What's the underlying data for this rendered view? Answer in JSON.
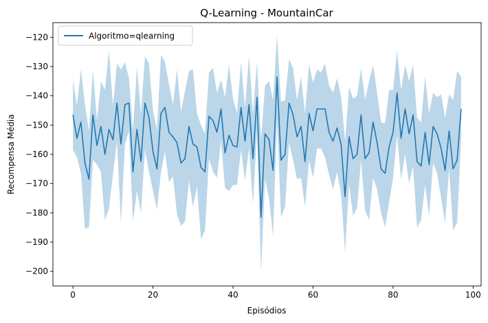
{
  "chart_data": {
    "type": "line",
    "title": "Q-Learning - MountainCar",
    "xlabel": "Episódios",
    "ylabel": "Recompensa Média",
    "xlim": [
      -5,
      102
    ],
    "ylim": [
      -205,
      -115
    ],
    "xticks": [
      0,
      20,
      40,
      60,
      80,
      100
    ],
    "xtick_labels": [
      "0",
      "20",
      "40",
      "60",
      "80",
      "100"
    ],
    "yticks": [
      -120,
      -130,
      -140,
      -150,
      -160,
      -170,
      -180,
      -190,
      -200
    ],
    "ytick_labels": [
      "−120",
      "−130",
      "−140",
      "−150",
      "−160",
      "−170",
      "−180",
      "−190",
      "−200"
    ],
    "grid": false,
    "legend_position": "top-left",
    "series": [
      {
        "name": "Algoritmo=qlearning",
        "color": "#1f77b4",
        "band_color": "#1f77b4",
        "x": [
          0,
          1,
          2,
          3,
          4,
          5,
          6,
          7,
          8,
          9,
          10,
          11,
          12,
          13,
          14,
          15,
          16,
          17,
          18,
          19,
          20,
          21,
          22,
          23,
          24,
          25,
          26,
          27,
          28,
          29,
          30,
          31,
          32,
          33,
          34,
          35,
          36,
          37,
          38,
          39,
          40,
          41,
          42,
          43,
          44,
          45,
          46,
          47,
          48,
          49,
          50,
          51,
          52,
          53,
          54,
          55,
          56,
          57,
          58,
          59,
          60,
          61,
          62,
          63,
          64,
          65,
          66,
          67,
          68,
          69,
          70,
          71,
          72,
          73,
          74,
          75,
          76,
          77,
          78,
          79,
          80,
          81,
          82,
          83,
          84,
          85,
          86,
          87,
          88,
          89,
          90,
          91,
          92,
          93,
          94,
          95,
          96,
          97
        ],
        "mean": [
          -146.5,
          -154.5,
          -149,
          -163,
          -168.5,
          -146.5,
          -157,
          -150.5,
          -160,
          -151.5,
          -155,
          -142.5,
          -156.5,
          -143,
          -142.5,
          -166,
          -151.5,
          -162.5,
          -142.5,
          -147.5,
          -159,
          -165,
          -146,
          -144,
          -152.5,
          -154,
          -156,
          -163,
          -161.5,
          -150.5,
          -156.5,
          -157.5,
          -164.5,
          -166,
          -147,
          -148.5,
          -152.5,
          -144.5,
          -159.5,
          -153.5,
          -157,
          -157.5,
          -144,
          -155.5,
          -143,
          -161.5,
          -140.5,
          -181.5,
          -153,
          -155,
          -165.5,
          -133.5,
          -162,
          -160,
          -142.5,
          -146.5,
          -154,
          -150.5,
          -162.5,
          -146,
          -152,
          -144.5,
          -144.5,
          -144.5,
          -152.5,
          -155.5,
          -151,
          -156.5,
          -174.5,
          -154,
          -161.5,
          -160,
          -146.5,
          -161.5,
          -159.5,
          -149,
          -156,
          -165,
          -166.5,
          -157.5,
          -152.5,
          -139,
          -154.5,
          -144.5,
          -153,
          -146.5,
          -162.5,
          -164,
          -152.5,
          -163.5,
          -150.5,
          -153,
          -158,
          -165.5,
          -152,
          -165,
          -162,
          -144.5
        ],
        "upper": [
          -134.5,
          -143.5,
          -131,
          -143,
          -152,
          -131,
          -148.5,
          -135,
          -138,
          -124.5,
          -143.5,
          -129,
          -131,
          -128.5,
          -134,
          -152,
          -130,
          -146,
          -126.5,
          -129,
          -145,
          -151.5,
          -126,
          -128.5,
          -136,
          -143,
          -131,
          -145.5,
          -138.5,
          -131.5,
          -131,
          -146,
          -150,
          -153,
          -132,
          -130.5,
          -139,
          -134.5,
          -140.5,
          -129.5,
          -141,
          -146,
          -128.5,
          -144,
          -126.5,
          -146,
          -128.5,
          -155,
          -136.5,
          -135,
          -141.5,
          -119.5,
          -142,
          -141.5,
          -127.5,
          -130.5,
          -141.5,
          -133.5,
          -146,
          -129,
          -135.5,
          -131,
          -132,
          -129,
          -136.5,
          -139,
          -134,
          -140,
          -155.5,
          -137,
          -141,
          -140,
          -130.5,
          -141.5,
          -135,
          -129.5,
          -139,
          -149,
          -149.5,
          -138,
          -138,
          -124.5,
          -138,
          -129.5,
          -135,
          -129.5,
          -147.5,
          -149,
          -133.5,
          -146,
          -139,
          -140.5,
          -139.5,
          -147.5,
          -139.5,
          -141.5,
          -131.5,
          -133.5
        ],
        "lower": [
          -158.5,
          -161,
          -166.5,
          -185.5,
          -185,
          -162,
          -163.5,
          -166,
          -182.5,
          -178.5,
          -167,
          -155.5,
          -183.5,
          -156.5,
          -152,
          -183,
          -172.5,
          -180,
          -158.5,
          -166,
          -172.5,
          -179,
          -166,
          -159,
          -169.5,
          -167.5,
          -180.5,
          -184.5,
          -183,
          -169,
          -178,
          -171,
          -189,
          -186,
          -161.5,
          -166,
          -168,
          -155.5,
          -171.5,
          -172.5,
          -170.5,
          -170.5,
          -158.5,
          -169,
          -158,
          -177,
          -152,
          -200.5,
          -168.5,
          -175,
          -188,
          -148,
          -181.5,
          -178,
          -156,
          -162,
          -168.5,
          -168,
          -178,
          -162,
          -168,
          -158,
          -158,
          -161,
          -167,
          -172,
          -166,
          -173.5,
          -193.5,
          -170.5,
          -181,
          -178.5,
          -162,
          -179,
          -182.5,
          -168,
          -172,
          -180,
          -185,
          -176.5,
          -168,
          -153.5,
          -168.5,
          -160,
          -170,
          -164,
          -185,
          -182.5,
          -170.5,
          -181,
          -163,
          -166.5,
          -175,
          -183.5,
          -165,
          -186,
          -183.5,
          -155
        ]
      }
    ]
  }
}
